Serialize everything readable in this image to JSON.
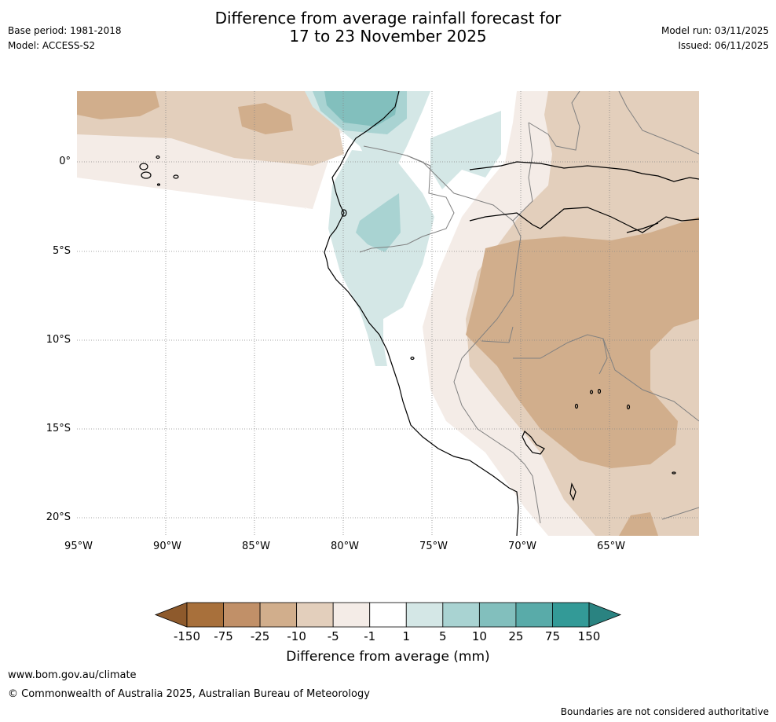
{
  "header": {
    "base_period": "Base period: 1981-2018",
    "model": "Model: ACCESS-S2",
    "title_line1": "Difference from average rainfall forecast for",
    "title_line2": "17 to 23 November 2025",
    "model_run": "Model run: 03/11/2025",
    "issued": "Issued: 06/11/2025"
  },
  "map": {
    "lat_labels": [
      "0°",
      "5°S",
      "10°S",
      "15°S",
      "20°S"
    ],
    "lon_labels": [
      "95°W",
      "90°W",
      "85°W",
      "80°W",
      "75°W",
      "70°W",
      "65°W"
    ]
  },
  "colorbar": {
    "colors": [
      "#a8703b",
      "#c19068",
      "#d1ae8c",
      "#e3cfbc",
      "#f4ece7",
      "#ffffff",
      "#d4e7e6",
      "#a9d3d2",
      "#82bfbd",
      "#59aba9",
      "#339a97"
    ],
    "end_low_color": "#8e5a2c",
    "end_high_color": "#2a8381",
    "tick_labels": [
      "-150",
      "-75",
      "-25",
      "-10",
      "-5",
      "-1",
      "1",
      "5",
      "10",
      "25",
      "75",
      "150"
    ],
    "label": "Difference from average (mm)"
  },
  "footer": {
    "website": "www.bom.gov.au/climate",
    "copyright": "© Commonwealth of Australia 2025, Australian Bureau of Meteorology",
    "disclaimer": "Boundaries are not considered authoritative"
  }
}
